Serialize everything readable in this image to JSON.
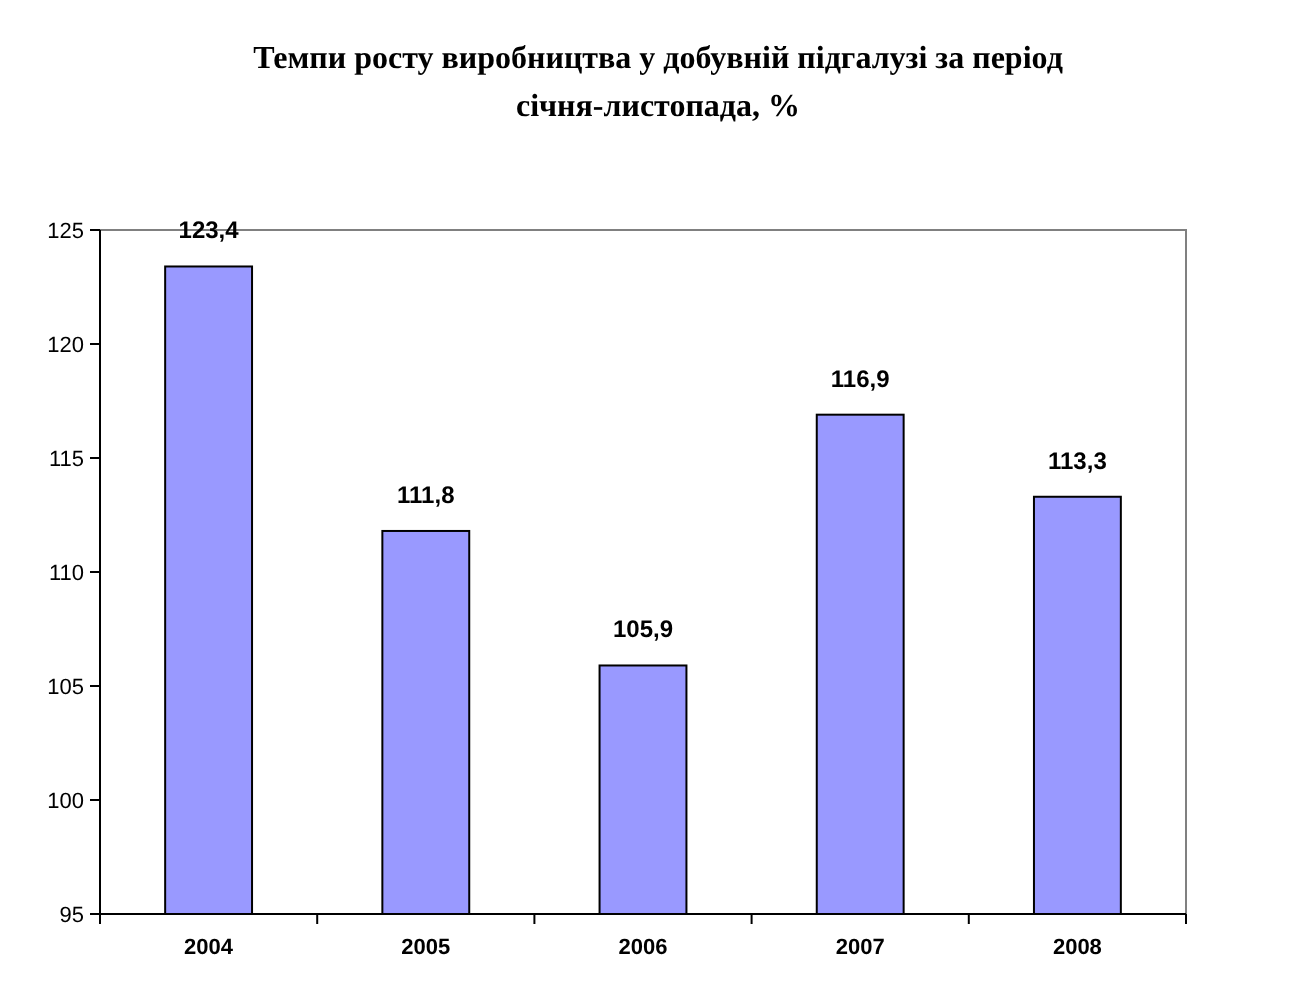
{
  "chart_data": {
    "type": "bar",
    "title": "Темпи росту виробництва у добувній підгалузі за період\nсічня-листопада, %",
    "categories": [
      "2004",
      "2005",
      "2006",
      "2007",
      "2008"
    ],
    "values": [
      123.4,
      111.8,
      105.9,
      116.9,
      113.3
    ],
    "value_labels": [
      "123,4",
      "111,8",
      "105,9",
      "116,9",
      "113,3"
    ],
    "color": "#9999ff",
    "ylim": [
      95,
      125
    ],
    "yticks": [
      95,
      100,
      105,
      110,
      115,
      120,
      125
    ]
  }
}
